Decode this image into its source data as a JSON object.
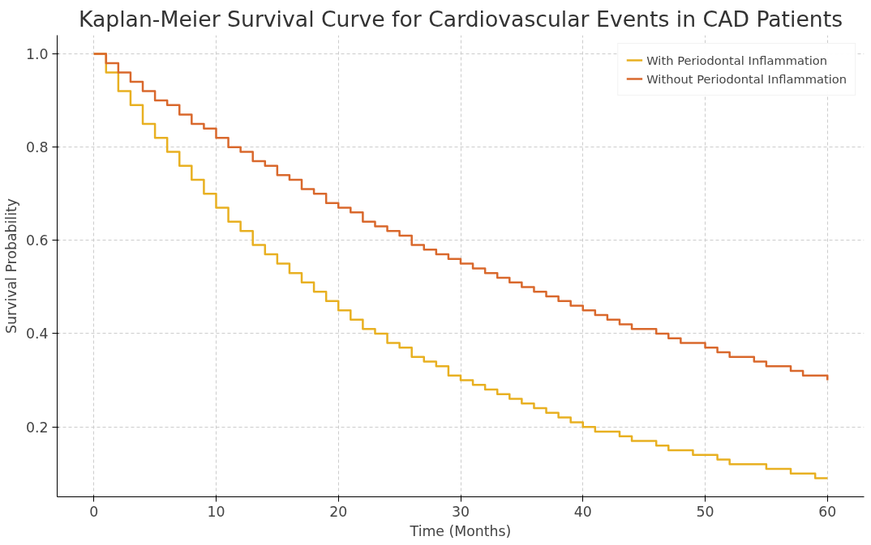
{
  "chart_data": {
    "type": "step",
    "title": "Kaplan-Meier Survival Curve for Cardiovascular Events in CAD Patients",
    "xlabel": "Time (Months)",
    "ylabel": "Survival Probability",
    "x": [
      0,
      1,
      2,
      3,
      4,
      5,
      6,
      7,
      8,
      9,
      10,
      11,
      12,
      13,
      14,
      15,
      16,
      17,
      18,
      19,
      20,
      21,
      22,
      23,
      24,
      25,
      26,
      27,
      28,
      29,
      30,
      31,
      32,
      33,
      34,
      35,
      36,
      37,
      38,
      39,
      40,
      41,
      42,
      43,
      44,
      45,
      46,
      47,
      48,
      49,
      50,
      51,
      52,
      53,
      54,
      55,
      56,
      57,
      58,
      59,
      60
    ],
    "series": [
      {
        "name": "With Periodontal Inflammation",
        "color": "#e8b021",
        "values": [
          1.0,
          0.96,
          0.92,
          0.89,
          0.85,
          0.82,
          0.79,
          0.76,
          0.73,
          0.7,
          0.67,
          0.64,
          0.62,
          0.59,
          0.57,
          0.55,
          0.53,
          0.51,
          0.49,
          0.47,
          0.45,
          0.43,
          0.41,
          0.4,
          0.38,
          0.37,
          0.35,
          0.34,
          0.33,
          0.31,
          0.3,
          0.29,
          0.28,
          0.27,
          0.26,
          0.25,
          0.24,
          0.23,
          0.22,
          0.21,
          0.2,
          0.19,
          0.19,
          0.18,
          0.17,
          0.17,
          0.16,
          0.15,
          0.15,
          0.14,
          0.14,
          0.13,
          0.12,
          0.12,
          0.12,
          0.11,
          0.11,
          0.1,
          0.1,
          0.09,
          0.09
        ]
      },
      {
        "name": "Without Periodontal Inflammation",
        "color": "#d9682c",
        "values": [
          1.0,
          0.98,
          0.96,
          0.94,
          0.92,
          0.9,
          0.89,
          0.87,
          0.85,
          0.84,
          0.82,
          0.8,
          0.79,
          0.77,
          0.76,
          0.74,
          0.73,
          0.71,
          0.7,
          0.68,
          0.67,
          0.66,
          0.64,
          0.63,
          0.62,
          0.61,
          0.59,
          0.58,
          0.57,
          0.56,
          0.55,
          0.54,
          0.53,
          0.52,
          0.51,
          0.5,
          0.49,
          0.48,
          0.47,
          0.46,
          0.45,
          0.44,
          0.43,
          0.42,
          0.41,
          0.41,
          0.4,
          0.39,
          0.38,
          0.38,
          0.37,
          0.36,
          0.35,
          0.35,
          0.34,
          0.33,
          0.33,
          0.32,
          0.31,
          0.31,
          0.3
        ]
      }
    ],
    "xlim": [
      -3,
      63
    ],
    "ylim": [
      0.05,
      1.04
    ],
    "xticks": [
      0,
      10,
      20,
      30,
      40,
      50,
      60
    ],
    "yticks": [
      0.2,
      0.4,
      0.6,
      0.8,
      {
        "value": 1,
        "label": "1.0"
      }
    ],
    "grid": true,
    "legend": "top right",
    "line_style": "solid"
  }
}
